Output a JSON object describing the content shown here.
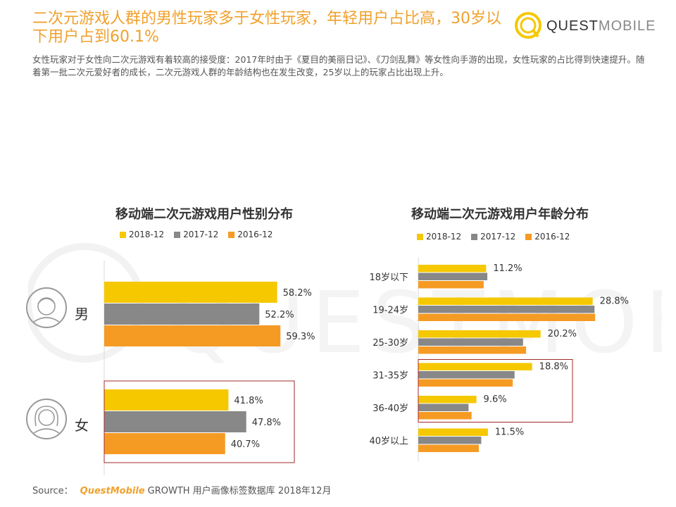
{
  "header": {
    "title": "二次元游戏人群的男性玩家多于女性玩家，年轻用户占比高，30岁以下用户占到60.1%",
    "subtitle": "女性玩家对于女性向二次元游戏有着较高的接受度：2017年时由于《夏目的美丽日记》、《刀剑乱舞》等女性向手游的出现，女性玩家的占比得到快速提升。随着第一批二次元爱好者的成长，二次元游戏人群的年龄结构也在发生改变，25岁以上的玩家占比出现上升。"
  },
  "logo": {
    "brand_bold": "QUEST",
    "brand_light": "MOBILE",
    "icon": "questmobile-logo-icon"
  },
  "colors": {
    "title": "#F0A12C",
    "s2018": "#F5C800",
    "s2017": "#888888",
    "s2016": "#F59B23",
    "highlight": "#A42A2A"
  },
  "source": {
    "label": "Source：",
    "brand": "QuestMobile",
    "text": "GROWTH 用户画像标签数据库 2018年12月"
  },
  "chart_data": [
    {
      "type": "bar",
      "orientation": "horizontal",
      "title": "移动端二次元游戏用户性别分布",
      "categories": [
        "男",
        "女"
      ],
      "category_icons": [
        "male-avatar-icon",
        "female-avatar-icon"
      ],
      "series": [
        {
          "name": "2018-12",
          "values": [
            58.2,
            41.8
          ],
          "labels": [
            "58.2%",
            "41.8%"
          ]
        },
        {
          "name": "2017-12",
          "values": [
            52.2,
            47.8
          ],
          "labels": [
            "52.2%",
            "47.8%"
          ]
        },
        {
          "name": "2016-12",
          "values": [
            59.3,
            40.7
          ],
          "labels": [
            "59.3%",
            "40.7%"
          ]
        }
      ],
      "highlighted_category": "女",
      "legend_position": "top"
    },
    {
      "type": "bar",
      "orientation": "horizontal",
      "title": "移动端二次元游戏用户年龄分布",
      "categories": [
        "18岁以下",
        "19-24岁",
        "25-30岁",
        "31-35岁",
        "36-40岁",
        "40岁以上"
      ],
      "series": [
        {
          "name": "2018-12",
          "values": [
            11.2,
            28.8,
            20.2,
            18.8,
            9.6,
            11.5
          ],
          "labels": [
            "11.2%",
            "28.8%",
            "20.2%",
            "18.8%",
            "9.6%",
            "11.5%"
          ]
        },
        {
          "name": "2017-12",
          "values": [
            11.4,
            29.1,
            17.3,
            15.9,
            8.3,
            10.4
          ]
        },
        {
          "name": "2016-12",
          "values": [
            10.8,
            29.2,
            17.8,
            15.6,
            8.8,
            10.0
          ]
        }
      ],
      "highlighted_categories": [
        "31-35岁",
        "36-40岁"
      ],
      "legend_position": "top"
    }
  ]
}
